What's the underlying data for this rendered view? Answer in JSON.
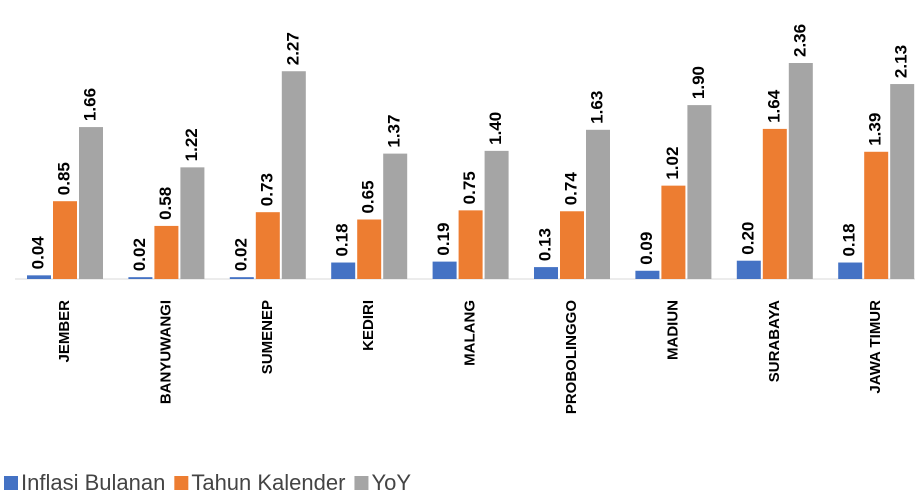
{
  "chart_data": {
    "type": "bar",
    "categories": [
      "JEMBER",
      "BANYUWANGI",
      "SUMENEP",
      "KEDIRI",
      "MALANG",
      "PROBOLINGGO",
      "MADIUN",
      "SURABAYA",
      "JAWA TIMUR"
    ],
    "series": [
      {
        "name": "Inflasi Bulanan",
        "color": "#4472c4",
        "values": [
          0.04,
          0.02,
          0.02,
          0.18,
          0.19,
          0.13,
          0.09,
          0.2,
          0.18
        ],
        "value_labels": [
          "0.04",
          "0.02",
          "0.02",
          "0.18",
          "0.19",
          "0.13",
          "0.09",
          "0.20",
          "0.18"
        ]
      },
      {
        "name": "Tahun Kalender",
        "color": "#ed7d31",
        "values": [
          0.85,
          0.58,
          0.73,
          0.65,
          0.75,
          0.74,
          1.02,
          1.64,
          1.39
        ],
        "value_labels": [
          "0.85",
          "0.58",
          "0.73",
          "0.65",
          "0.75",
          "0.74",
          "1.02",
          "1.64",
          "1.39"
        ]
      },
      {
        "name": "YoY",
        "color": "#a5a5a5",
        "values": [
          1.66,
          1.22,
          2.27,
          1.37,
          1.4,
          1.63,
          1.9,
          2.36,
          2.13
        ],
        "value_labels": [
          "1.66",
          "1.22",
          "2.27",
          "1.37",
          "1.40",
          "1.63",
          "1.90",
          "2.36",
          "2.13"
        ]
      }
    ],
    "legend": "bottom"
  }
}
